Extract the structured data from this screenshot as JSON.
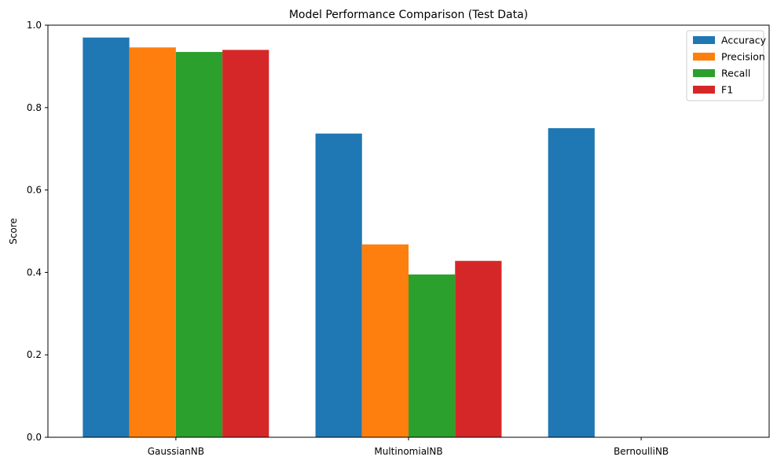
{
  "chart_data": {
    "type": "bar",
    "title": "Model Performance Comparison (Test Data)",
    "xlabel": "",
    "ylabel": "Score",
    "ylim": [
      0,
      1.0
    ],
    "yticks": [
      "0.0",
      "0.2",
      "0.4",
      "0.6",
      "0.8",
      "1.0"
    ],
    "grid": false,
    "legend_position": "top-right",
    "categories": [
      "GaussianNB",
      "MultinomialNB",
      "BernoulliNB"
    ],
    "series": [
      {
        "name": "Accuracy",
        "color": "#1f77b4",
        "values": [
          0.97,
          0.737,
          0.75
        ]
      },
      {
        "name": "Precision",
        "color": "#ff7f0e",
        "values": [
          0.946,
          0.468,
          0.0
        ]
      },
      {
        "name": "Recall",
        "color": "#2ca02c",
        "values": [
          0.935,
          0.395,
          0.0
        ]
      },
      {
        "name": "F1",
        "color": "#d62728",
        "values": [
          0.94,
          0.428,
          0.0
        ]
      }
    ]
  }
}
